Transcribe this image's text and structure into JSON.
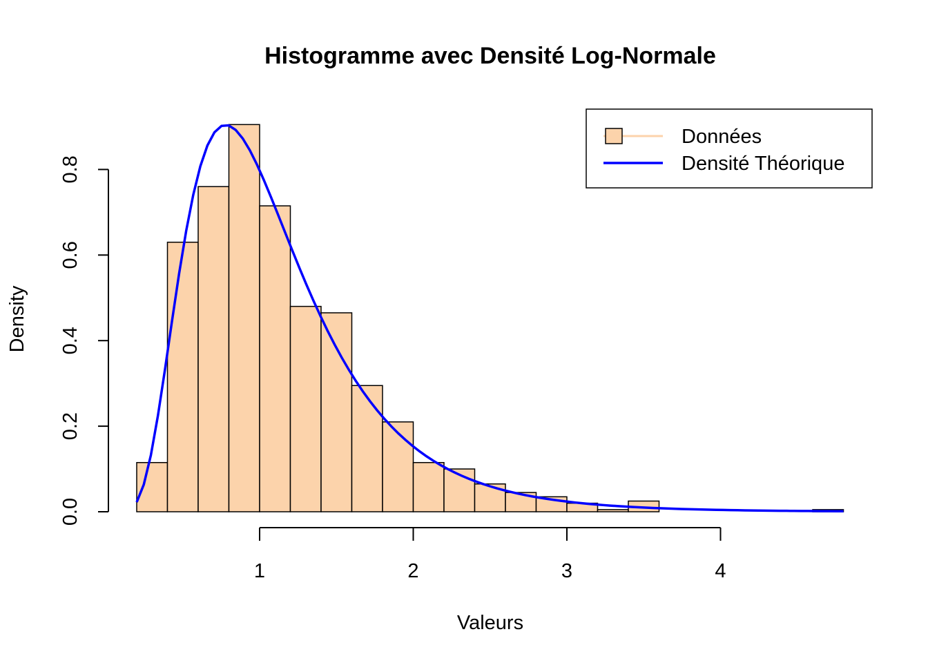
{
  "chart_data": {
    "type": "bar",
    "title": "Histogramme avec Densité Log-Normale",
    "xlabel": "Valeurs",
    "ylabel": "Density",
    "xlim": [
      0.2,
      4.8
    ],
    "ylim": [
      0,
      0.9
    ],
    "x_ticks": [
      1,
      2,
      3,
      4
    ],
    "y_ticks": [
      0.0,
      0.2,
      0.4,
      0.6,
      0.8
    ],
    "x_tick_labels": [
      "1",
      "2",
      "3",
      "4"
    ],
    "y_tick_labels": [
      "0.0",
      "0.2",
      "0.4",
      "0.6",
      "0.8"
    ],
    "bar_color": "#FCD3AB",
    "line_color": "#0000FF",
    "histogram": {
      "name": "Données",
      "bin_width": 0.2,
      "bins": [
        {
          "x0": 0.2,
          "x1": 0.4,
          "density": 0.115
        },
        {
          "x0": 0.4,
          "x1": 0.6,
          "density": 0.63
        },
        {
          "x0": 0.6,
          "x1": 0.8,
          "density": 0.76
        },
        {
          "x0": 0.8,
          "x1": 1.0,
          "density": 0.905
        },
        {
          "x0": 1.0,
          "x1": 1.2,
          "density": 0.715
        },
        {
          "x0": 1.2,
          "x1": 1.4,
          "density": 0.48
        },
        {
          "x0": 1.4,
          "x1": 1.6,
          "density": 0.465
        },
        {
          "x0": 1.6,
          "x1": 1.8,
          "density": 0.295
        },
        {
          "x0": 1.8,
          "x1": 2.0,
          "density": 0.21
        },
        {
          "x0": 2.0,
          "x1": 2.2,
          "density": 0.115
        },
        {
          "x0": 2.2,
          "x1": 2.4,
          "density": 0.1
        },
        {
          "x0": 2.4,
          "x1": 2.6,
          "density": 0.065
        },
        {
          "x0": 2.6,
          "x1": 2.8,
          "density": 0.045
        },
        {
          "x0": 2.8,
          "x1": 3.0,
          "density": 0.035
        },
        {
          "x0": 3.0,
          "x1": 3.2,
          "density": 0.02
        },
        {
          "x0": 3.2,
          "x1": 3.4,
          "density": 0.005
        },
        {
          "x0": 3.4,
          "x1": 3.6,
          "density": 0.025
        },
        {
          "x0": 3.6,
          "x1": 3.8,
          "density": 0.0
        },
        {
          "x0": 3.8,
          "x1": 4.0,
          "density": 0.0
        },
        {
          "x0": 4.0,
          "x1": 4.2,
          "density": 0.0
        },
        {
          "x0": 4.2,
          "x1": 4.4,
          "density": 0.0
        },
        {
          "x0": 4.4,
          "x1": 4.6,
          "density": 0.0
        },
        {
          "x0": 4.6,
          "x1": 4.8,
          "density": 0.005
        }
      ]
    },
    "density_curve": {
      "name": "Densité Théorique",
      "distribution": "lognormal",
      "meanlog": 0.0,
      "sdlog": 0.5,
      "x_range": [
        0.2,
        4.8
      ]
    },
    "legend": {
      "position": "top-right",
      "entries": [
        "Données",
        "Densité Théorique"
      ]
    }
  }
}
